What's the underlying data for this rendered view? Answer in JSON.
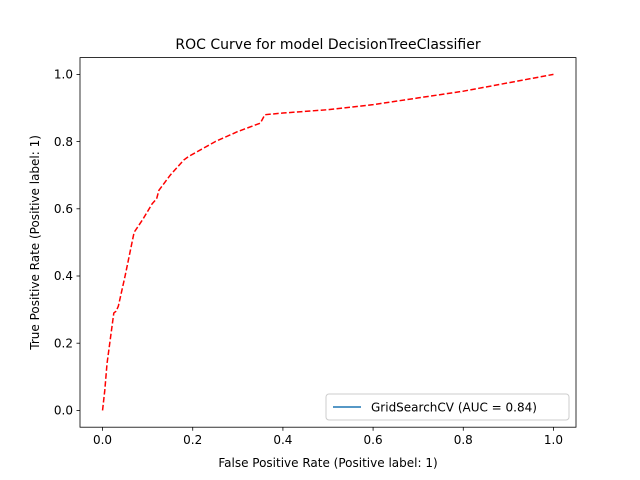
{
  "chart_data": {
    "type": "line",
    "title": "ROC Curve for model DecisionTreeClassifier",
    "xlabel": "False Positive Rate (Positive label: 1)",
    "ylabel": "True Positive Rate (Positive label: 1)",
    "xlim": [
      -0.05,
      1.05
    ],
    "ylim": [
      -0.05,
      1.05
    ],
    "xticks": [
      0.0,
      0.2,
      0.4,
      0.6,
      0.8,
      1.0
    ],
    "yticks": [
      0.0,
      0.2,
      0.4,
      0.6,
      0.8,
      1.0
    ],
    "xtick_labels": [
      "0.0",
      "0.2",
      "0.4",
      "0.6",
      "0.8",
      "1.0"
    ],
    "ytick_labels": [
      "0.0",
      "0.2",
      "0.4",
      "0.6",
      "0.8",
      "1.0"
    ],
    "grid": false,
    "legend_position": "lower-right",
    "series": [
      {
        "name": "GridSearchCV (AUC = 0.84)",
        "color": "#1f77b4",
        "style": "solid",
        "x": [],
        "y": []
      },
      {
        "color": "#ff0000",
        "style": "dashed",
        "x": [
          0.0,
          0.005,
          0.01,
          0.02,
          0.025,
          0.03,
          0.035,
          0.05,
          0.07,
          0.09,
          0.11,
          0.12,
          0.125,
          0.15,
          0.18,
          0.19,
          0.25,
          0.3,
          0.35,
          0.36,
          0.4,
          0.5,
          0.6,
          0.7,
          0.8,
          0.9,
          1.0
        ],
        "y": [
          0.0,
          0.06,
          0.14,
          0.24,
          0.29,
          0.295,
          0.31,
          0.4,
          0.53,
          0.57,
          0.615,
          0.63,
          0.655,
          0.7,
          0.745,
          0.755,
          0.8,
          0.83,
          0.855,
          0.88,
          0.885,
          0.895,
          0.91,
          0.93,
          0.95,
          0.975,
          1.0
        ]
      }
    ]
  }
}
